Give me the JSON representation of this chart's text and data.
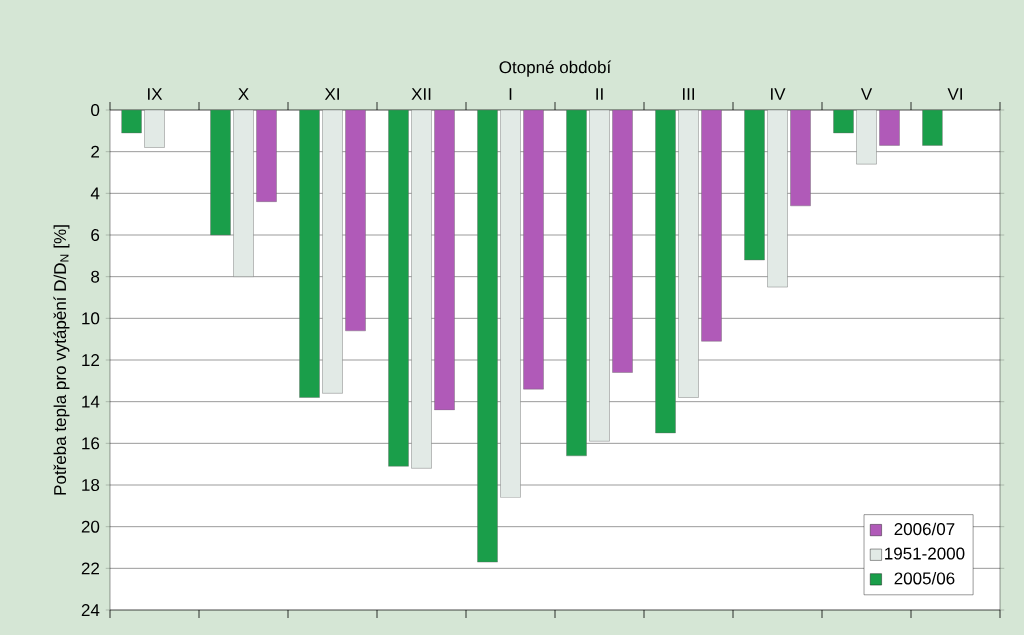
{
  "chart_data": {
    "type": "bar",
    "xlabel": "Otopné období",
    "ylabel": "Potřeba tepla pro vytápění D/D$_{N}$ [%]",
    "categories": [
      "IX",
      "X",
      "XI",
      "XII",
      "I",
      "II",
      "III",
      "IV",
      "V",
      "VI"
    ],
    "series": [
      {
        "name": "2005/06",
        "color": "#1a9e4a",
        "values": [
          1.1,
          6.0,
          13.8,
          17.1,
          21.7,
          16.6,
          15.5,
          7.2,
          1.1,
          1.7
        ]
      },
      {
        "name": "1951-2000",
        "color": "#e2eae6",
        "values": [
          1.8,
          8.0,
          13.6,
          17.2,
          18.6,
          15.9,
          13.8,
          8.5,
          2.6,
          null
        ]
      },
      {
        "name": "2006/07",
        "color": "#b05ab8",
        "values": [
          null,
          4.4,
          10.6,
          14.4,
          13.4,
          12.6,
          11.1,
          4.6,
          1.7,
          null
        ]
      }
    ],
    "ylim": [
      24,
      0
    ],
    "yticks": [
      0,
      2,
      4,
      6,
      8,
      10,
      12,
      14,
      16,
      18,
      20,
      22,
      24
    ],
    "grid": "y",
    "legend": "bottom right"
  }
}
